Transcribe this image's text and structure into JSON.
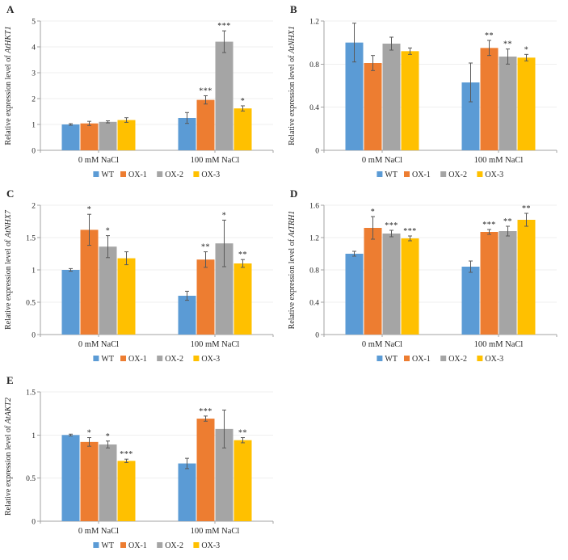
{
  "figure": {
    "description": "Five-panel grouped bar figure of relative gene expression under salt treatment",
    "background": "#ffffff"
  },
  "palette": {
    "WT": "#5B9BD5",
    "OX-1": "#ED7D31",
    "OX-2": "#A5A5A5",
    "OX-3": "#FFC000",
    "error_bar": "#595959",
    "axis": "#A3A3A3",
    "gridline": "#EFEFEF",
    "text": "#262626"
  },
  "chart_data": [
    {
      "panel": "A",
      "type": "bar",
      "ylabel": "Relative expression level of AtHKT1",
      "ylabel_prefix": "Relative expression level of ",
      "gene": "AtHKT1",
      "ylim": [
        0,
        5
      ],
      "yticks": [
        "0",
        "1",
        "2",
        "3",
        "4",
        "5"
      ],
      "categories": [
        "0 mM NaCl",
        "100 mM NaCl"
      ],
      "legend": [
        "WT",
        "OX-1",
        "OX-2",
        "OX-3"
      ],
      "legend_position": "bottom",
      "grid": true,
      "series": [
        {
          "name": "WT",
          "values": [
            1.0,
            1.25
          ],
          "errors": [
            0.03,
            0.21
          ],
          "sig": [
            "",
            ""
          ]
        },
        {
          "name": "OX-1",
          "values": [
            1.04,
            1.95
          ],
          "errors": [
            0.08,
            0.16
          ],
          "sig": [
            "",
            "***"
          ]
        },
        {
          "name": "OX-2",
          "values": [
            1.1,
            4.2
          ],
          "errors": [
            0.04,
            0.42
          ],
          "sig": [
            "",
            "***"
          ]
        },
        {
          "name": "OX-3",
          "values": [
            1.17,
            1.62
          ],
          "errors": [
            0.09,
            0.1
          ],
          "sig": [
            "",
            "*"
          ]
        }
      ]
    },
    {
      "panel": "B",
      "type": "bar",
      "ylabel": "Relative expression level of AtNHX1",
      "ylabel_prefix": "Relative expression level of ",
      "gene": "AtNHX1",
      "ylim": [
        0,
        1.2
      ],
      "yticks": [
        "0",
        "0.4",
        "0.8",
        "1.2"
      ],
      "categories": [
        "0 mM NaCl",
        "100 mM NaCl"
      ],
      "legend": [
        "WT",
        "OX-1",
        "OX-2",
        "OX-3"
      ],
      "legend_position": "bottom",
      "grid": true,
      "series": [
        {
          "name": "WT",
          "values": [
            1.0,
            0.63
          ],
          "errors": [
            0.18,
            0.18
          ],
          "sig": [
            "",
            ""
          ]
        },
        {
          "name": "OX-1",
          "values": [
            0.81,
            0.95
          ],
          "errors": [
            0.07,
            0.07
          ],
          "sig": [
            "",
            "**"
          ]
        },
        {
          "name": "OX-2",
          "values": [
            0.99,
            0.87
          ],
          "errors": [
            0.06,
            0.07
          ],
          "sig": [
            "",
            "**"
          ]
        },
        {
          "name": "OX-3",
          "values": [
            0.92,
            0.86
          ],
          "errors": [
            0.03,
            0.03
          ],
          "sig": [
            "",
            "*"
          ]
        }
      ]
    },
    {
      "panel": "C",
      "type": "bar",
      "ylabel": "Relative expression level of AtNHX7",
      "ylabel_prefix": "Relative expression level of ",
      "gene": "AtNHX7",
      "ylim": [
        0,
        2
      ],
      "yticks": [
        "0",
        "0.5",
        "1",
        "1.5",
        "2"
      ],
      "categories": [
        "0 mM NaCl",
        "100 mM NaCl"
      ],
      "legend": [
        "WT",
        "OX-1",
        "OX-2",
        "OX-3"
      ],
      "legend_position": "bottom",
      "grid": true,
      "series": [
        {
          "name": "WT",
          "values": [
            1.0,
            0.6
          ],
          "errors": [
            0.02,
            0.07
          ],
          "sig": [
            "",
            ""
          ]
        },
        {
          "name": "OX-1",
          "values": [
            1.62,
            1.16
          ],
          "errors": [
            0.24,
            0.12
          ],
          "sig": [
            "*",
            "**"
          ]
        },
        {
          "name": "OX-2",
          "values": [
            1.36,
            1.41
          ],
          "errors": [
            0.17,
            0.36
          ],
          "sig": [
            "*",
            "*"
          ]
        },
        {
          "name": "OX-3",
          "values": [
            1.18,
            1.1
          ],
          "errors": [
            0.1,
            0.06
          ],
          "sig": [
            "",
            "**"
          ]
        }
      ]
    },
    {
      "panel": "D",
      "type": "bar",
      "ylabel": "Relative expression level of AtTRH1",
      "ylabel_prefix": "Relative expression level of ",
      "gene": "AtTRH1",
      "ylim": [
        0,
        1.6
      ],
      "yticks": [
        "0",
        "0.4",
        "0.8",
        "1.2",
        "1.6"
      ],
      "categories": [
        "0 mM NaCl",
        "100 mM NaCl"
      ],
      "legend": [
        "WT",
        "OX-1",
        "OX-2",
        "OX-3"
      ],
      "legend_position": "bottom",
      "grid": true,
      "series": [
        {
          "name": "WT",
          "values": [
            1.0,
            0.84
          ],
          "errors": [
            0.03,
            0.07
          ],
          "sig": [
            "",
            ""
          ]
        },
        {
          "name": "OX-1",
          "values": [
            1.32,
            1.27
          ],
          "errors": [
            0.14,
            0.03
          ],
          "sig": [
            "*",
            "***"
          ]
        },
        {
          "name": "OX-2",
          "values": [
            1.25,
            1.28
          ],
          "errors": [
            0.04,
            0.06
          ],
          "sig": [
            "***",
            "**"
          ]
        },
        {
          "name": "OX-3",
          "values": [
            1.19,
            1.42
          ],
          "errors": [
            0.03,
            0.08
          ],
          "sig": [
            "***",
            "**"
          ]
        }
      ]
    },
    {
      "panel": "E",
      "type": "bar",
      "ylabel": "Relative expression level of AtAKT2",
      "ylabel_prefix": "Relative expression level of ",
      "gene": "AtAKT2",
      "ylim": [
        0,
        1.5
      ],
      "yticks": [
        "0",
        "0.5",
        "1",
        "1.5"
      ],
      "categories": [
        "0 mM NaCl",
        "100 mM NaCl"
      ],
      "legend": [
        "WT",
        "OX-1",
        "OX-2",
        "OX-3"
      ],
      "legend_position": "bottom",
      "grid": true,
      "series": [
        {
          "name": "WT",
          "values": [
            1.0,
            0.67
          ],
          "errors": [
            0.01,
            0.06
          ],
          "sig": [
            "",
            ""
          ]
        },
        {
          "name": "OX-1",
          "values": [
            0.92,
            1.19
          ],
          "errors": [
            0.05,
            0.03
          ],
          "sig": [
            "*",
            "***"
          ]
        },
        {
          "name": "OX-2",
          "values": [
            0.89,
            1.07
          ],
          "errors": [
            0.04,
            0.22
          ],
          "sig": [
            "*",
            ""
          ]
        },
        {
          "name": "OX-3",
          "values": [
            0.7,
            0.94
          ],
          "errors": [
            0.02,
            0.03
          ],
          "sig": [
            "***",
            "**"
          ]
        }
      ]
    }
  ]
}
